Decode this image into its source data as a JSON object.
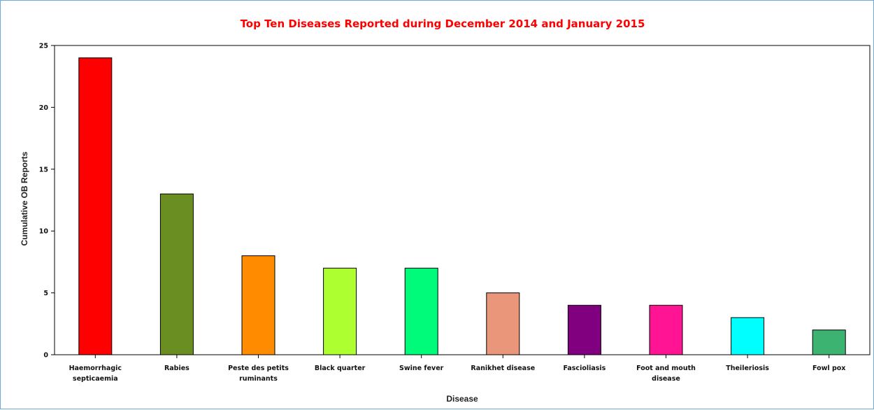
{
  "chart_data": {
    "type": "bar",
    "title": "Top Ten Diseases Reported during December 2014 and January 2015",
    "xlabel": "Disease",
    "ylabel": "Cumulative OB Reports",
    "ylim": [
      0,
      25
    ],
    "yticks": [
      "0",
      "5",
      "10",
      "15",
      "20",
      "25"
    ],
    "grid": false,
    "legend": "none",
    "categories": [
      [
        "Haemorrhagic",
        "septicaemia"
      ],
      [
        "Rabies"
      ],
      [
        "Peste des petits",
        "ruminants"
      ],
      [
        "Black quarter"
      ],
      [
        "Swine fever"
      ],
      [
        "Ranikhet disease"
      ],
      [
        "Fascioliasis"
      ],
      [
        "Foot and mouth",
        "disease"
      ],
      [
        "Theileriosis"
      ],
      [
        "Fowl pox"
      ]
    ],
    "values": [
      24,
      13,
      8,
      7,
      7,
      5,
      4,
      4,
      3,
      2
    ],
    "colors": [
      "#ff0000",
      "#6b8e23",
      "#ff8c00",
      "#adff2f",
      "#00fa7a",
      "#e9967a",
      "#800080",
      "#ff1493",
      "#00ffff",
      "#3cb371"
    ]
  }
}
